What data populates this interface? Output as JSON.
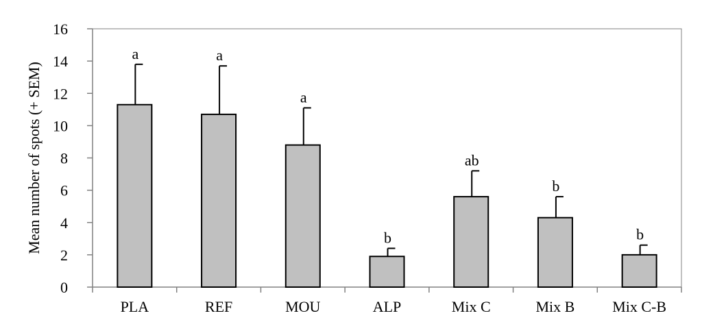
{
  "chart_data": {
    "type": "bar",
    "categories": [
      "PLA",
      "REF",
      "MOU",
      "ALP",
      "Mix C",
      "Mix B",
      "Mix C-B"
    ],
    "values": [
      11.3,
      10.7,
      8.8,
      1.9,
      5.6,
      4.3,
      2.0
    ],
    "errors": [
      2.5,
      3.0,
      2.3,
      0.5,
      1.6,
      1.3,
      0.6
    ],
    "significance": [
      "a",
      "a",
      "a",
      "b",
      "ab",
      "b",
      "b"
    ],
    "ylabel": "Mean number of spots (+ SEM)",
    "xlabel": "",
    "title": "",
    "ylim": [
      0,
      16
    ],
    "yticks": [
      0,
      2,
      4,
      6,
      8,
      10,
      12,
      14,
      16
    ],
    "grid": false,
    "bar_color": "#c0c0c0",
    "edge_color": "#000000"
  }
}
